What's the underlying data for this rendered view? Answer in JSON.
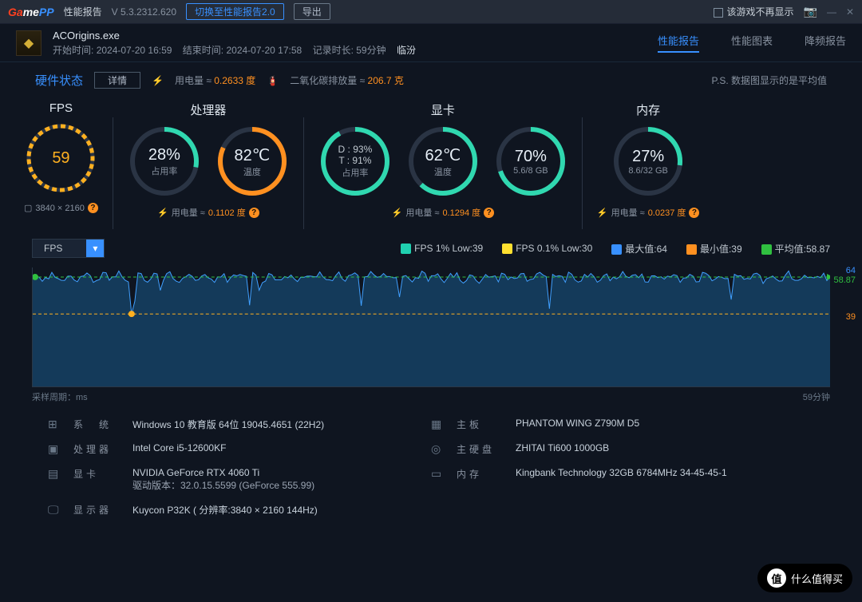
{
  "titlebar": {
    "title": "性能报告",
    "version": "V 5.3.2312.620",
    "switch": "切换至性能报告2.0",
    "export": "导出",
    "nohide": "该游戏不再显示"
  },
  "header": {
    "exe": "ACOrigins.exe",
    "start_lbl": "开始时间:",
    "start": "2024-07-20 16:59",
    "end_lbl": "结束时间:",
    "end": "2024-07-20 17:58",
    "dur_lbl": "记录时长:",
    "dur": "59分钟",
    "loc": "临汾"
  },
  "tabs": {
    "a": "性能报告",
    "b": "性能图表",
    "c": "降频报告"
  },
  "row3": {
    "hw": "硬件状态",
    "detail": "详情",
    "pwr_lbl": "用电量 ≈",
    "pwr": "0.2633 度",
    "co2_lbl": "二氧化碳排放量 ≈",
    "co2": "206.7 克",
    "ps": "P.S. 数据图显示的是平均值"
  },
  "fps": {
    "title": "FPS",
    "value": "59",
    "res": "3840 × 2160",
    "color": "#ffb020",
    "pct": 80
  },
  "cpu": {
    "title": "处理器",
    "usage": "28%",
    "usage_lbl": "占用率",
    "temp": "82℃",
    "temp_lbl": "温度",
    "pwr": "0.1102 度",
    "u_pct": 28,
    "t_pct": 82,
    "u_color": "#30d8b0",
    "t_color": "#ff9020"
  },
  "gpu": {
    "title": "显卡",
    "d": "D : 93%",
    "t": "T : 91%",
    "usage_lbl": "占用率",
    "temp": "62℃",
    "temp_lbl": "温度",
    "mem": "70%",
    "mem_sub": "5.6/8 GB",
    "pwr": "0.1294 度",
    "u_pct": 92,
    "t_pct": 62,
    "m_pct": 70,
    "color": "#30d8b0"
  },
  "ram": {
    "title": "内存",
    "usage": "27%",
    "sub": "8.6/32 GB",
    "pwr": "0.0237 度",
    "pct": 27,
    "color": "#30d8b0"
  },
  "legend": {
    "dd": "FPS",
    "l1": "FPS 1% Low:39",
    "l2": "FPS 0.1% Low:30",
    "l3": "最大值:64",
    "l4": "最小值:39",
    "l5": "平均值:58.87",
    "c1": "#20d0b0",
    "c2": "#ffe030",
    "c3": "#3890ff",
    "c4": "#ff9020",
    "c5": "#30c040"
  },
  "chart": {
    "max": 64,
    "avg": 58.87,
    "min": 39,
    "axis_l": "采样周期：ms",
    "axis_r": "59分钟",
    "fill": "#1a5a8a",
    "line": "#40a0ff",
    "minline": "#ffb020"
  },
  "specs": {
    "os_l": "系　统",
    "os": "Windows 10 教育版 64位 19045.4651 (22H2)",
    "mb_l": "主板",
    "mb": "PHANTOM WING Z790M D5",
    "cpu_l": "处理器",
    "cpu": "Intel Core i5-12600KF",
    "disk_l": "主硬盘",
    "disk": "ZHITAI Ti600 1000GB",
    "gpu_l": "显卡",
    "gpu": "NVIDIA GeForce RTX 4060 Ti",
    "drv": "驱动版本：32.0.15.5599 (GeForce 555.99)",
    "ram_l": "内存",
    "ram": "Kingbank Technology 32GB 6784MHz 34-45-45-1",
    "mon_l": "显示器",
    "mon": "Kuycon P32K ( 分辨率:3840 × 2160 144Hz)"
  },
  "badge": "什么值得买"
}
